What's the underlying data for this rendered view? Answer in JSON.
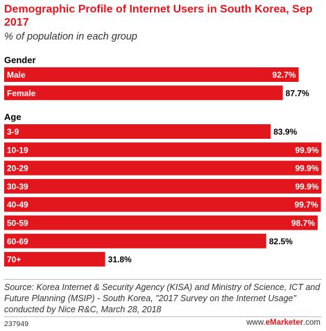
{
  "title": "Demographic Profile of Internet Users in South Korea, Sep 2017",
  "subtitle": "% of population in each group",
  "source": "Source: Korea Internet & Security Agency (KISA) and Ministry of Science, ICT and Future Planning (MSIP) - South Korea, \"2017 Survey on the Internet Usage\" conducted by Nice R&C, March 28, 2018",
  "chart_id": "237949",
  "brand": {
    "prefix": "www.",
    "name": "eMarketer",
    "suffix": ".com"
  },
  "colors": {
    "bar": "#e2171e",
    "title": "#e2171e"
  },
  "chart_data": {
    "type": "bar",
    "orientation": "horizontal",
    "unit": "%",
    "xlim": [
      0,
      100
    ],
    "groups": [
      {
        "label": "Gender",
        "categories": [
          "Male",
          "Female"
        ],
        "values": [
          92.7,
          87.7
        ],
        "value_labels": [
          "92.7%",
          "87.7%"
        ]
      },
      {
        "label": "Age",
        "categories": [
          "3-9",
          "10-19",
          "20-29",
          "30-39",
          "40-49",
          "50-59",
          "60-69",
          "70+"
        ],
        "values": [
          83.9,
          99.9,
          99.9,
          99.9,
          99.7,
          98.7,
          82.5,
          31.8
        ],
        "value_labels": [
          "83.9%",
          "99.9%",
          "99.9%",
          "99.9%",
          "99.7%",
          "98.7%",
          "82.5%",
          "31.8%"
        ]
      }
    ]
  }
}
